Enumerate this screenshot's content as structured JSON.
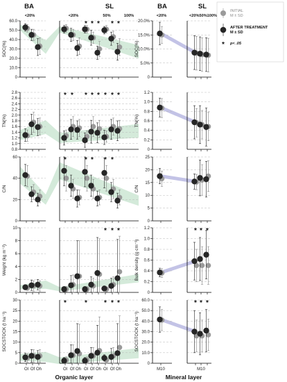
{
  "figure": {
    "headers": {
      "ba_left": "BA",
      "sl_left": "SL",
      "ba_right": "BA",
      "sl_right": "SL"
    },
    "subheaders": {
      "left_ba": "<20%",
      "left_sl": [
        "<20%",
        "50%",
        "100%"
      ],
      "right_ba": "<20%",
      "right_sl": "<20%50%100%"
    },
    "footer": {
      "left": "Organic layer",
      "right": "Mineral layer"
    },
    "legend": {
      "initial_label": "INITIAL",
      "initial_sub": "M ± SD",
      "after_label": "AFTER TREATMENT",
      "after_sub": "M ± SD",
      "star_symbol": "*",
      "star_label": "p< .05"
    },
    "colors": {
      "initial": "#9a9a9a",
      "after": "#262626",
      "organic_band": "#cfe8d6",
      "mineral_band": "#c3c3e6"
    }
  },
  "chart_data": [
    {
      "type": "scatter",
      "panel": "organic",
      "ylabel": "SOC(%)",
      "ylim": [
        0,
        60
      ],
      "yticks": [
        "0",
        "10.0",
        "20.0",
        "30.0",
        "40.0",
        "50.0",
        "60.0"
      ],
      "categories": [
        "Ol",
        "Of",
        "Oh",
        "Ol",
        "Of",
        "Oh",
        "Ol",
        "Of",
        "Oh",
        "Ol",
        "Of",
        "Oh"
      ],
      "series": [
        {
          "name": "INITIAL",
          "values": [
            52,
            45,
            33,
            52,
            45,
            33,
            51,
            42,
            30,
            51,
            43,
            32
          ],
          "errors": [
            4,
            6,
            9,
            4,
            6,
            9,
            4,
            6,
            8,
            4,
            6,
            9
          ]
        },
        {
          "name": "AFTER TREATMENT",
          "values": [
            53,
            45,
            32,
            51,
            45,
            31,
            51,
            42,
            26,
            50,
            41,
            27
          ],
          "errors": [
            4,
            6,
            9,
            4,
            7,
            8,
            4,
            8,
            7,
            4,
            7,
            9
          ]
        }
      ],
      "stars": [
        "",
        "",
        "",
        "",
        "",
        "",
        "*",
        "*",
        "*",
        "",
        "*",
        "*"
      ]
    },
    {
      "type": "scatter",
      "panel": "organic",
      "ylabel": "TN(%)",
      "ylim": [
        0.8,
        2.8
      ],
      "yticks": [
        "0.8",
        "1.0",
        "1.2",
        "1.4",
        "1.6",
        "1.8",
        "2.0",
        "2.2",
        "2.4",
        "2.6",
        "2.8"
      ],
      "categories": [
        "Ol",
        "Of",
        "Oh",
        "Ol",
        "Of",
        "Oh",
        "Ol",
        "Of",
        "Oh",
        "Ol",
        "Of",
        "Oh"
      ],
      "series": [
        {
          "name": "INITIAL",
          "values": [
            1.28,
            1.75,
            1.6,
            1.28,
            1.6,
            1.55,
            1.25,
            1.6,
            1.52,
            1.25,
            1.6,
            1.52
          ],
          "errors": [
            0.2,
            0.35,
            0.3,
            0.2,
            0.35,
            0.3,
            0.2,
            0.35,
            0.3,
            0.2,
            0.3,
            0.3
          ]
        },
        {
          "name": "AFTER TREATMENT",
          "values": [
            1.3,
            1.68,
            1.58,
            1.2,
            1.5,
            1.48,
            1.12,
            1.42,
            1.38,
            1.22,
            1.5,
            1.45
          ],
          "errors": [
            0.22,
            0.35,
            0.3,
            0.25,
            0.35,
            0.32,
            0.25,
            0.4,
            0.35,
            0.25,
            0.35,
            0.35
          ]
        }
      ],
      "stars": [
        "",
        "",
        "",
        "*",
        "*",
        "",
        "*",
        "*",
        "*",
        "*",
        "*",
        "*"
      ]
    },
    {
      "type": "scatter",
      "panel": "organic",
      "ylabel": "C/N",
      "ylim": [
        0,
        60
      ],
      "yticks": [
        "0",
        "20",
        "40",
        "60"
      ],
      "categories": [
        "Ol",
        "Of",
        "Oh",
        "Ol",
        "Of",
        "Oh",
        "Ol",
        "Of",
        "Oh",
        "Ol",
        "Of",
        "Oh"
      ],
      "series": [
        {
          "name": "INITIAL",
          "values": [
            42,
            27,
            23,
            40,
            30,
            22,
            40,
            30,
            22,
            40,
            30,
            22
          ],
          "errors": [
            10,
            7,
            6,
            12,
            9,
            7,
            12,
            9,
            7,
            12,
            9,
            7
          ]
        },
        {
          "name": "AFTER TREATMENT",
          "values": [
            43,
            25,
            20,
            47,
            33,
            21,
            46,
            33,
            21,
            45,
            27,
            19
          ],
          "errors": [
            10,
            7,
            6,
            14,
            10,
            8,
            14,
            10,
            7,
            14,
            9,
            7
          ]
        }
      ],
      "stars": [
        "",
        "",
        "",
        "*",
        "",
        "",
        "*",
        "*",
        "",
        "*",
        "*",
        ""
      ]
    },
    {
      "type": "scatter",
      "panel": "organic",
      "ylabel": "Weight (kg m⁻²)",
      "ylim": [
        0,
        10
      ],
      "yticks": [
        "0",
        "2",
        "4",
        "6",
        "8",
        "10"
      ],
      "categories": [
        "Ol",
        "Of",
        "Oh",
        "Ol",
        "Of",
        "Oh",
        "Ol",
        "Of",
        "Oh",
        "Ol",
        "Of",
        "Oh"
      ],
      "series": [
        {
          "name": "INITIAL",
          "values": [
            0.7,
            1.0,
            1.0,
            0.5,
            1.2,
            2.5,
            0.5,
            1.0,
            2.8,
            0.5,
            1.2,
            3.2
          ],
          "errors": [
            0.4,
            0.8,
            0.8,
            0.4,
            1.5,
            5.5,
            0.4,
            1.2,
            5.5,
            0.4,
            1.2,
            5.5
          ]
        },
        {
          "name": "AFTER TREATMENT",
          "values": [
            0.8,
            1.1,
            1.2,
            0.5,
            1.1,
            2.5,
            0.5,
            1.2,
            3.0,
            0.6,
            1.0,
            2.2
          ],
          "errors": [
            0.4,
            0.8,
            0.8,
            0.4,
            1.5,
            5.5,
            0.4,
            1.2,
            5.5,
            0.4,
            1.2,
            6.0
          ]
        }
      ],
      "stars": [
        "",
        "",
        "",
        "",
        "",
        "",
        "",
        "",
        "",
        "*",
        "*",
        "*"
      ]
    },
    {
      "type": "scatter",
      "panel": "organic",
      "ylabel": "SOCSTOCK (t ha⁻¹)",
      "ylim": [
        0,
        30
      ],
      "yticks": [
        "0",
        "5",
        "10",
        "15",
        "20",
        "25",
        "30"
      ],
      "categories": [
        "Ol",
        "Of",
        "Oh",
        "Ol",
        "Of",
        "Oh",
        "Ol",
        "Of",
        "Oh",
        "Ol",
        "Of",
        "Oh"
      ],
      "series": [
        {
          "name": "INITIAL",
          "values": [
            2.5,
            3.5,
            3.5,
            1.5,
            3.8,
            4.5,
            1.5,
            3.5,
            6.0,
            1.5,
            3.5,
            7.5
          ],
          "errors": [
            2,
            3,
            3,
            1.5,
            5,
            14,
            1.5,
            4,
            16,
            1.5,
            4,
            15
          ]
        },
        {
          "name": "AFTER TREATMENT",
          "values": [
            2.8,
            3.5,
            3.0,
            1.2,
            3.8,
            5.8,
            1.2,
            3.5,
            5.0,
            2.5,
            3.0,
            4.8
          ],
          "errors": [
            2,
            3,
            3,
            1.5,
            5,
            13,
            1.5,
            4,
            13,
            1.5,
            4,
            14
          ]
        }
      ],
      "stars": [
        "",
        "",
        "",
        "*",
        "",
        "",
        "*",
        "",
        "",
        "*",
        "*",
        "*"
      ]
    },
    {
      "type": "scatter",
      "panel": "mineral",
      "ylabel": "SOC(%)",
      "ylim": [
        0,
        20
      ],
      "yticks": [
        "0",
        "5.0%",
        "10.0%",
        "15.0%",
        "20.0%"
      ],
      "categories": [
        "M10",
        "M10",
        "M10",
        "M10"
      ],
      "series": [
        {
          "name": "INITIAL",
          "values": [
            15,
            8.5,
            8,
            7.8
          ],
          "errors": [
            3,
            6,
            6,
            6
          ]
        },
        {
          "name": "AFTER TREATMENT",
          "values": [
            15.5,
            8.7,
            8.3,
            8
          ],
          "errors": [
            4,
            6,
            6,
            6
          ]
        }
      ],
      "stars": [
        "",
        "",
        "",
        ""
      ]
    },
    {
      "type": "scatter",
      "panel": "mineral",
      "ylabel": "TN(%)",
      "ylim": [
        0,
        1.2
      ],
      "yticks": [
        "0",
        "0.2",
        "0.4",
        "0.6",
        "0.8",
        "1.0",
        "1.2"
      ],
      "categories": [
        "M10",
        "M10",
        "M10",
        "M10"
      ],
      "series": [
        {
          "name": "INITIAL",
          "values": [
            0.87,
            0.56,
            0.52,
            0.48
          ],
          "errors": [
            0.2,
            0.3,
            0.3,
            0.3
          ]
        },
        {
          "name": "AFTER TREATMENT",
          "values": [
            0.88,
            0.57,
            0.52,
            0.47
          ],
          "errors": [
            0.2,
            0.35,
            0.4,
            0.4
          ]
        }
      ],
      "stars": [
        "",
        "",
        "",
        ""
      ]
    },
    {
      "type": "scatter",
      "panel": "mineral",
      "ylabel": "C/N",
      "ylim": [
        0,
        25
      ],
      "yticks": [
        "0",
        "5",
        "10",
        "15",
        "20",
        "25"
      ],
      "categories": [
        "M10",
        "M10",
        "M10",
        "M10"
      ],
      "series": [
        {
          "name": "INITIAL",
          "values": [
            16.5,
            15.2,
            16,
            17.5
          ],
          "errors": [
            3,
            3,
            6,
            6
          ]
        },
        {
          "name": "AFTER TREATMENT",
          "values": [
            17.5,
            15.4,
            16.8,
            16.3
          ],
          "errors": [
            3,
            3,
            7,
            7
          ]
        }
      ],
      "stars": [
        "",
        "",
        "",
        ""
      ]
    },
    {
      "type": "scatter",
      "panel": "mineral",
      "ylabel": "Bulk density (g cm⁻³)",
      "ylim": [
        0,
        1.2
      ],
      "yticks": [
        "0",
        "0.2",
        "0.4",
        "0.6",
        "0.8",
        "1.0",
        "1.2"
      ],
      "categories": [
        "M10",
        "M10",
        "M10",
        "M10"
      ],
      "series": [
        {
          "name": "INITIAL",
          "values": [
            0.36,
            0.5,
            0.5,
            0.5
          ],
          "errors": [
            0.08,
            0.3,
            0.35,
            0.35
          ]
        },
        {
          "name": "AFTER TREATMENT",
          "values": [
            0.37,
            0.58,
            0.62,
            0.7
          ],
          "errors": [
            0.08,
            0.35,
            0.4,
            0.45
          ]
        }
      ],
      "stars": [
        "",
        "*",
        "*",
        "*"
      ]
    },
    {
      "type": "scatter",
      "panel": "mineral",
      "ylabel": "SOCSTOCK (t ha⁻¹)",
      "ylim": [
        0,
        60
      ],
      "yticks": [
        "0",
        "10.0",
        "20.0",
        "30.0",
        "40.0",
        "50.0",
        "60.0"
      ],
      "categories": [
        "M10",
        "M10",
        "M10",
        "M10"
      ],
      "series": [
        {
          "name": "INITIAL",
          "values": [
            41,
            26,
            26,
            27
          ],
          "errors": [
            10,
            15,
            15,
            15
          ]
        },
        {
          "name": "AFTER TREATMENT",
          "values": [
            41.5,
            30,
            28,
            31
          ],
          "errors": [
            12,
            20,
            20,
            20
          ]
        }
      ],
      "stars": [
        "",
        "*",
        "*",
        "*"
      ]
    }
  ]
}
